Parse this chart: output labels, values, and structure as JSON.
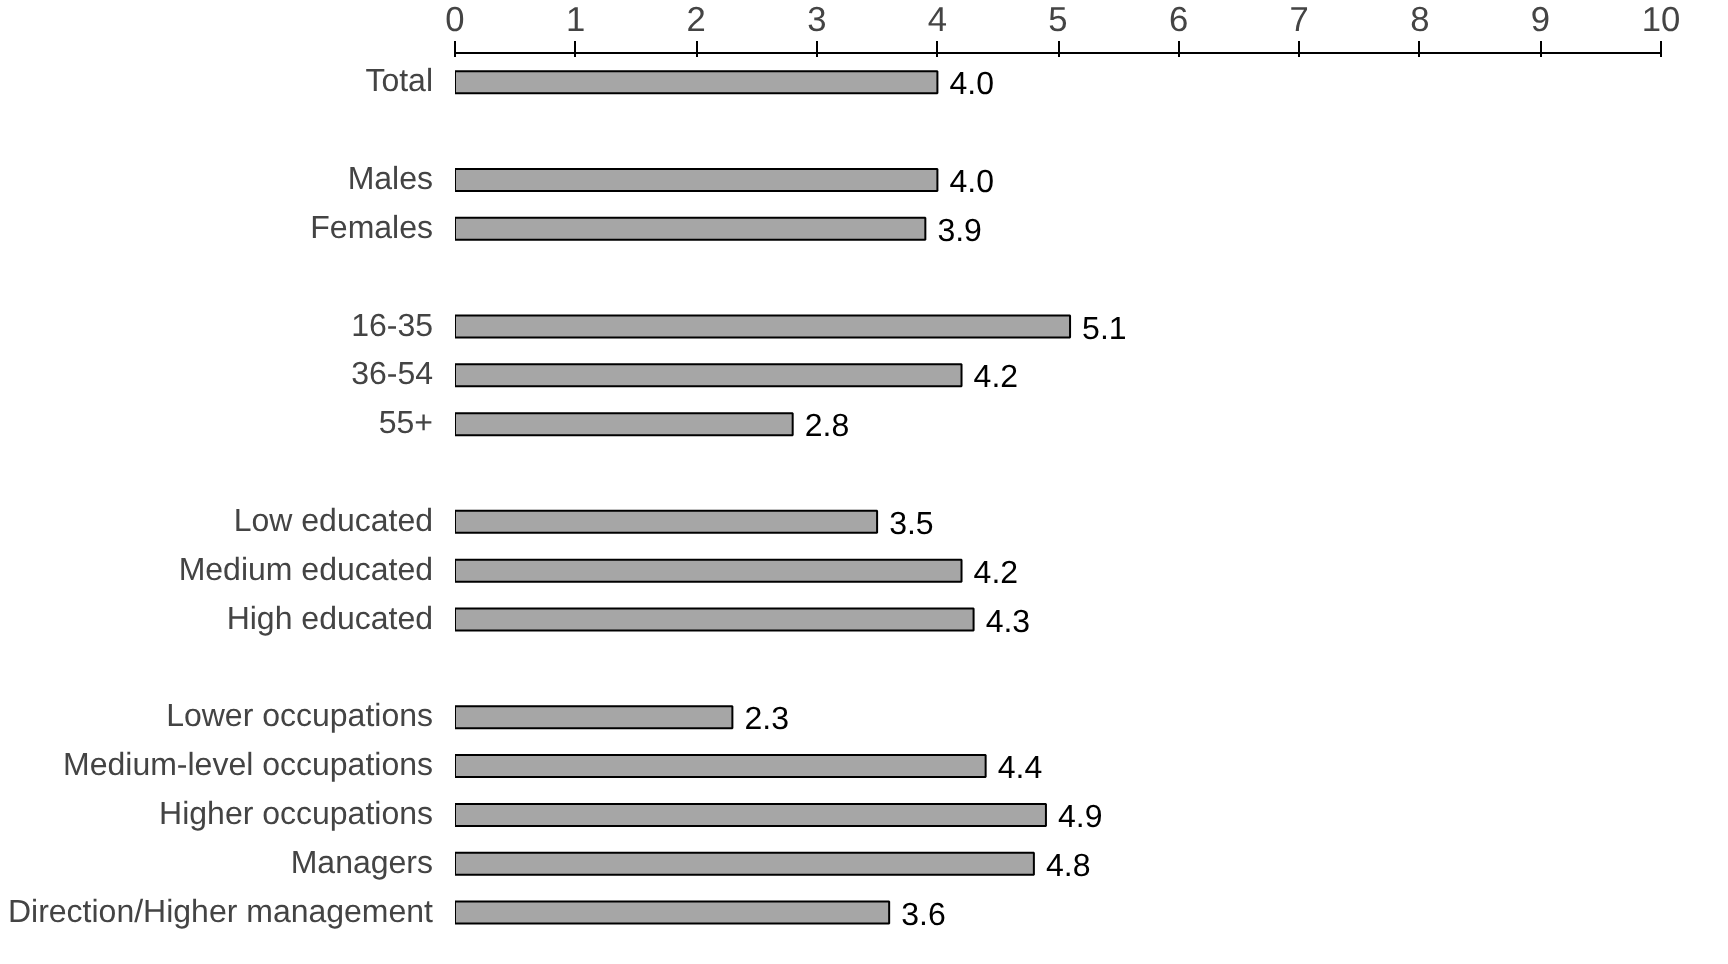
{
  "chart_data": {
    "type": "bar",
    "orientation": "horizontal",
    "categories": [
      "Total",
      null,
      "Males",
      "Females",
      null,
      "16-35",
      "36-54",
      "55+",
      null,
      "Low educated",
      "Medium educated",
      "High educated",
      null,
      "Lower occupations",
      "Medium-level occupations",
      "Higher occupations",
      "Managers",
      "Direction/Higher management"
    ],
    "values": [
      4.0,
      null,
      4.0,
      3.9,
      null,
      5.1,
      4.2,
      2.8,
      null,
      3.5,
      4.2,
      4.3,
      null,
      2.3,
      4.4,
      4.9,
      4.8,
      3.6
    ],
    "color": "#a6a6a6",
    "xlim": [
      0,
      10
    ],
    "xticks": [
      0,
      1,
      2,
      3,
      4,
      5,
      6,
      7,
      8,
      9,
      10
    ],
    "value_labels": [
      "4.0",
      null,
      "4.0",
      "3.9",
      null,
      "5.1",
      "4.2",
      "2.8",
      null,
      "3.5",
      "4.2",
      "4.3",
      null,
      "2.3",
      "4.4",
      "4.9",
      "4.8",
      "3.6"
    ],
    "grid": false
  }
}
